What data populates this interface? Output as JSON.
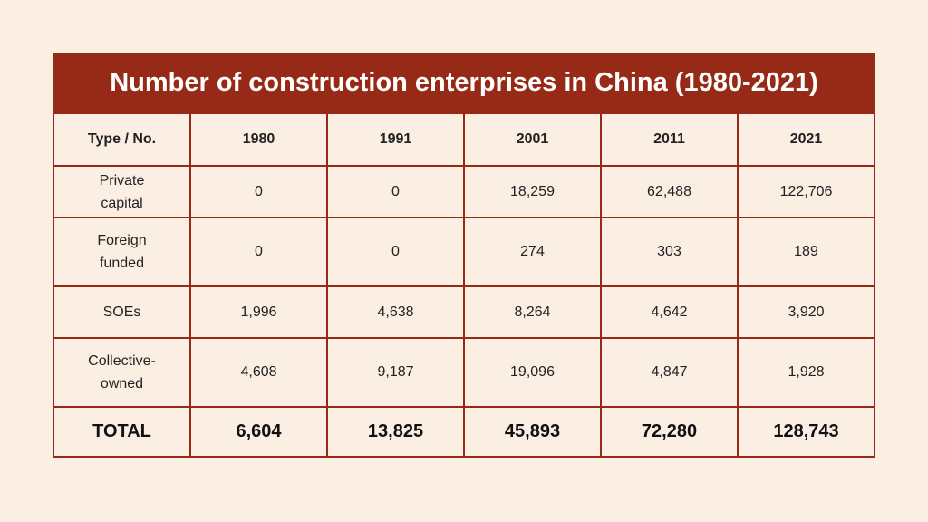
{
  "title": "Number of construction enterprises in China (1980-2021)",
  "table": {
    "header": [
      "Type / No.",
      "1980",
      "1991",
      "2001",
      "2011",
      "2021"
    ],
    "rows": [
      [
        "Private capital",
        "0",
        "0",
        "18,259",
        "62,488",
        "122,706"
      ],
      [
        "Foreign funded",
        "0",
        "0",
        "274",
        "303",
        "189"
      ],
      [
        "SOEs",
        "1,996",
        "4,638",
        "8,264",
        "4,642",
        "3,920"
      ],
      [
        "Collective-owned",
        "4,608",
        "9,187",
        "19,096",
        "4,847",
        "1,928"
      ]
    ],
    "total": [
      "TOTAL",
      "6,604",
      "13,825",
      "45,893",
      "72,280",
      "128,743"
    ]
  }
}
